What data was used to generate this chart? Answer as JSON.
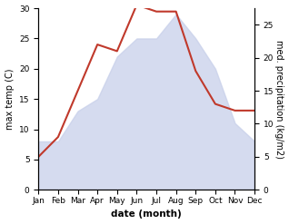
{
  "months": [
    "Jan",
    "Feb",
    "Mar",
    "Apr",
    "May",
    "Jun",
    "Jul",
    "Aug",
    "Sep",
    "Oct",
    "Nov",
    "Dec"
  ],
  "temp": [
    8,
    8,
    13,
    15,
    22,
    25,
    25,
    29,
    25,
    20,
    11,
    8
  ],
  "precip": [
    5,
    8,
    15,
    22,
    21,
    28,
    27,
    27,
    18,
    13,
    12,
    12
  ],
  "precip_color": "#c0392b",
  "temp_fill_color": "#c8d0ea",
  "temp_fill_alpha": 0.75,
  "ylabel_left": "max temp (C)",
  "ylabel_right": "med. precipitation (kg/m2)",
  "xlabel": "date (month)",
  "ylim_left": [
    0,
    30
  ],
  "ylim_right": [
    0,
    27.5
  ],
  "precip_scale_factor": 1.2,
  "bg_color": "#ffffff",
  "tick_fontsize": 6.5,
  "label_fontsize": 7,
  "xlabel_fontsize": 7.5
}
